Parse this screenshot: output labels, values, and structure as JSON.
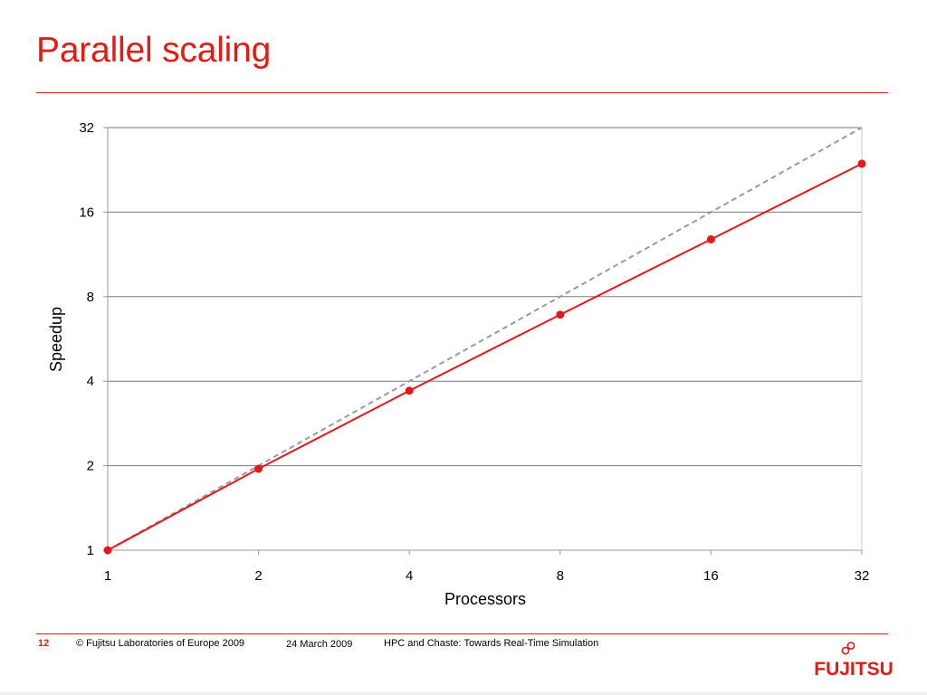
{
  "slide": {
    "title": "Parallel scaling"
  },
  "chart_data": {
    "type": "line",
    "xscale": "log2",
    "yscale": "log2",
    "xlabel": "Processors",
    "ylabel": "Speedup",
    "xlim": [
      1,
      32
    ],
    "ylim": [
      1,
      32
    ],
    "xticks": [
      1,
      2,
      4,
      8,
      16,
      32
    ],
    "yticks": [
      1,
      2,
      4,
      8,
      16,
      32
    ],
    "grid": "horizontal",
    "legend": "none",
    "series": [
      {
        "style": "dashed",
        "color": "#9a9a9a",
        "markers": false,
        "x": [
          1,
          32
        ],
        "y": [
          1,
          32
        ]
      },
      {
        "style": "solid",
        "color": "#e8161a",
        "markers": true,
        "x": [
          1,
          2,
          4,
          8,
          16,
          32
        ],
        "y": [
          1,
          1.95,
          3.7,
          6.9,
          12.8,
          23.8
        ]
      }
    ]
  },
  "footer": {
    "page_number": "12",
    "copyright": "© Fujitsu Laboratories of Europe 2009",
    "date": "24 March 2009",
    "talk_title": "HPC and Chaste: Towards Real-Time Simulation"
  },
  "logo": {
    "text": "FUJITSU",
    "color": "#e41b13"
  }
}
